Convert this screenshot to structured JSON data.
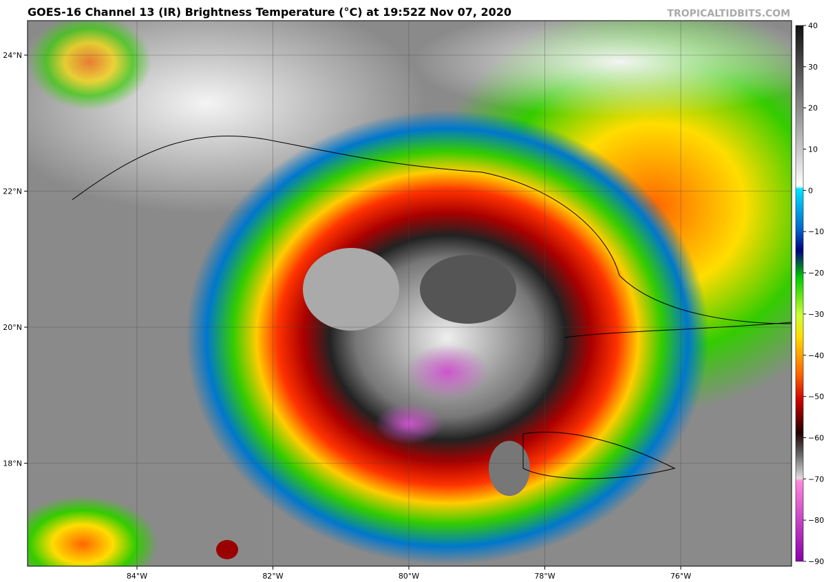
{
  "header": {
    "title": "GOES-16 Channel 13 (IR) Brightness Temperature (°C) at 19:52Z Nov 07, 2020",
    "source": "TROPICALTIDBITS.COM"
  },
  "map": {
    "lat_labels": [
      {
        "value": 24,
        "label": "24°N"
      },
      {
        "value": 22,
        "label": "22°N"
      },
      {
        "value": 20,
        "label": "20°N"
      },
      {
        "value": 18,
        "label": "18°N"
      }
    ],
    "lon_labels": [
      {
        "value": -84,
        "label": "84°W"
      },
      {
        "value": -82,
        "label": "82°W"
      },
      {
        "value": -80,
        "label": "80°W"
      },
      {
        "value": -78,
        "label": "78°W"
      },
      {
        "value": -76,
        "label": "76°W"
      }
    ]
  },
  "colorbar": {
    "range": [
      -90,
      40
    ],
    "ticks": [
      40,
      30,
      20,
      10,
      0,
      {
        "value": -10,
        "label": "−10"
      },
      {
        "value": -20,
        "label": "−20"
      },
      {
        "value": -30,
        "label": "−30"
      },
      {
        "value": -40,
        "label": "−40"
      },
      {
        "value": -50,
        "label": "−50"
      },
      {
        "value": -60,
        "label": "−60"
      },
      {
        "value": -70,
        "label": "−70"
      },
      {
        "value": -80,
        "label": "−80"
      },
      {
        "value": -90,
        "label": "−90"
      }
    ]
  }
}
